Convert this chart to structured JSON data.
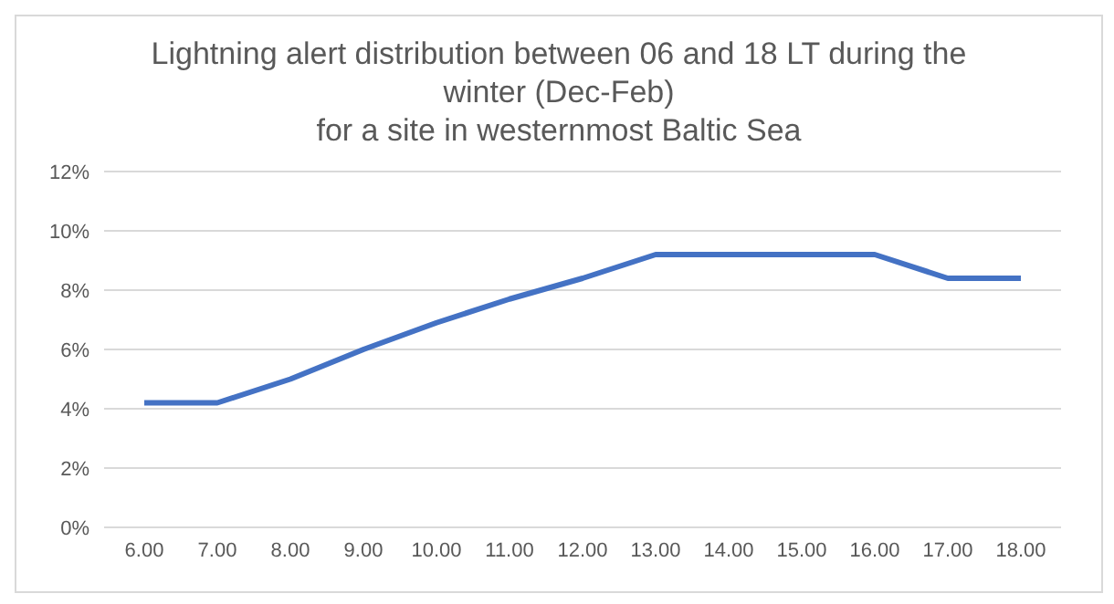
{
  "chart_data": {
    "type": "line",
    "title": "Lightning alert distribution between 06 and 18 LT during the winter (Dec-Feb)\nfor a site in westernmost Baltic Sea",
    "categories": [
      "6.00",
      "7.00",
      "8.00",
      "9.00",
      "10.00",
      "11.00",
      "12.00",
      "13.00",
      "14.00",
      "15.00",
      "16.00",
      "17.00",
      "18.00"
    ],
    "series": [
      {
        "color": "#4472c4",
        "values": [
          4.2,
          4.2,
          5.0,
          6.0,
          6.9,
          7.7,
          8.4,
          9.2,
          9.2,
          9.2,
          9.2,
          8.4,
          8.4
        ]
      }
    ],
    "ylim": [
      0,
      12
    ],
    "yticks": [
      {
        "value": 0,
        "label": "0%"
      },
      {
        "value": 2,
        "label": "2%"
      },
      {
        "value": 4,
        "label": "4%"
      },
      {
        "value": 6,
        "label": "6%"
      },
      {
        "value": 8,
        "label": "8%"
      },
      {
        "value": 10,
        "label": "10%"
      },
      {
        "value": 12,
        "label": "12%"
      }
    ],
    "grid": "y",
    "legend": false,
    "marker": "none",
    "line_style": "solid"
  }
}
